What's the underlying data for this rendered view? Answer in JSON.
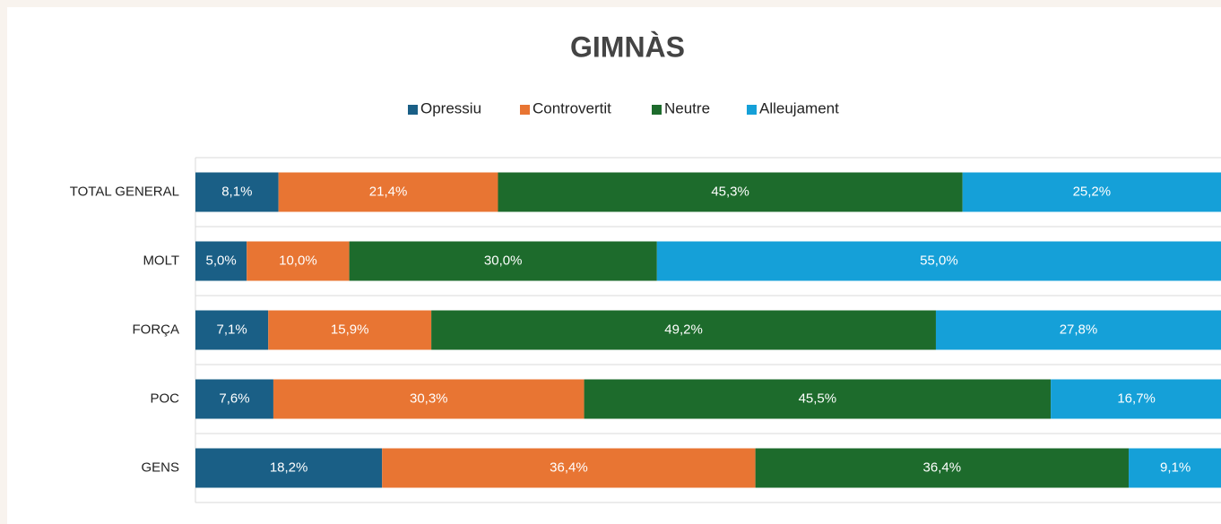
{
  "chart_data": {
    "type": "stacked_bar_horizontal",
    "title": "GIMNÀS",
    "categories": [
      "TOTAL GENERAL",
      "MOLT",
      "FORÇA",
      "POC",
      "GENS"
    ],
    "xlim": [
      0,
      100
    ],
    "legend": "top",
    "series": [
      {
        "name": "Opressiu",
        "color": "#1a5f86",
        "values": [
          8.1,
          5.0,
          7.1,
          7.6,
          18.2
        ],
        "value_labels": [
          "8,1%",
          "5,0%",
          "7,1%",
          "7,6%",
          "18,2%"
        ]
      },
      {
        "name": "Controvertit",
        "color": "#e87533",
        "values": [
          21.4,
          10.0,
          15.9,
          30.3,
          36.4
        ],
        "value_labels": [
          "21,4%",
          "10,0%",
          "15,9%",
          "30,3%",
          "36,4%"
        ]
      },
      {
        "name": "Neutre",
        "color": "#1d6b2c",
        "values": [
          45.3,
          30.0,
          49.2,
          45.5,
          36.4
        ],
        "value_labels": [
          "45,3%",
          "30,0%",
          "49,2%",
          "45,5%",
          "36,4%"
        ]
      },
      {
        "name": "Alleujament",
        "color": "#15a0d8",
        "values": [
          25.2,
          55.0,
          27.8,
          16.7,
          9.1
        ],
        "value_labels": [
          "25,2%",
          "55,0%",
          "27,8%",
          "16,7%",
          "9,1%"
        ]
      }
    ]
  }
}
